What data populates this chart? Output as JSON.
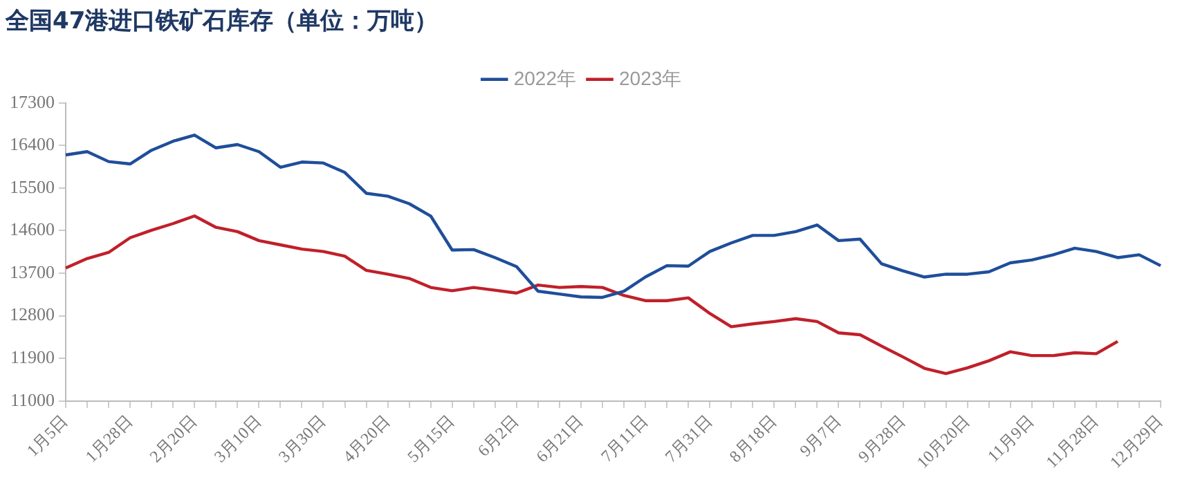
{
  "chart_data": {
    "type": "line",
    "title": "全国47港进口铁矿石库存（单位：万吨）",
    "categories": [
      "1月5日",
      null,
      null,
      "1月28日",
      null,
      null,
      "2月20日",
      null,
      null,
      "3月10日",
      null,
      null,
      "3月30日",
      null,
      null,
      "4月20日",
      null,
      null,
      "5月15日",
      null,
      null,
      "6月2日",
      null,
      null,
      "6月21日",
      null,
      null,
      "7月11日",
      null,
      null,
      "7月31日",
      null,
      null,
      "8月18日",
      null,
      null,
      "9月7日",
      null,
      null,
      "9月28日",
      null,
      null,
      "10月20日",
      null,
      null,
      "11月9日",
      null,
      null,
      "11月28日",
      null,
      null,
      "12月29日"
    ],
    "series": [
      {
        "name": "2022年",
        "color": "#1f4e9a",
        "values": [
          16200,
          16270,
          16060,
          16010,
          16300,
          16490,
          16620,
          16350,
          16420,
          16270,
          15940,
          16050,
          16030,
          15830,
          15390,
          15330,
          15170,
          14910,
          14190,
          14200,
          14030,
          13840,
          13320,
          13260,
          13200,
          13190,
          13320,
          13620,
          13860,
          13850,
          14160,
          14340,
          14500,
          14500,
          14580,
          14720,
          14390,
          14420,
          13900,
          13750,
          13620,
          13680,
          13680,
          13730,
          13920,
          13980,
          14090,
          14230,
          14160,
          14030,
          14090,
          13860
        ]
      },
      {
        "name": "2023年",
        "color": "#c0202a",
        "values": [
          13810,
          14010,
          14140,
          14450,
          14610,
          14750,
          14910,
          14670,
          14580,
          14390,
          14300,
          14210,
          14160,
          14060,
          13760,
          13680,
          13590,
          13400,
          13330,
          13400,
          13340,
          13280,
          13450,
          13400,
          13420,
          13400,
          13230,
          13120,
          13120,
          13180,
          12850,
          12570,
          12630,
          12680,
          12740,
          12680,
          12440,
          12400,
          12160,
          11930,
          11690,
          11580,
          11700,
          11850,
          12040,
          11960,
          11960,
          12020,
          12000,
          12260,
          null,
          null
        ]
      }
    ],
    "ylim": [
      11000,
      17300
    ],
    "yticks": [
      11000,
      11900,
      12800,
      13700,
      14600,
      15500,
      16400,
      17300
    ],
    "grid": false,
    "legend": "top",
    "marker": "none",
    "line_style": "solid"
  }
}
